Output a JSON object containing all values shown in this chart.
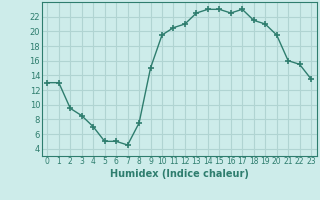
{
  "x": [
    0,
    1,
    2,
    3,
    4,
    5,
    6,
    7,
    8,
    9,
    10,
    11,
    12,
    13,
    14,
    15,
    16,
    17,
    18,
    19,
    20,
    21,
    22,
    23
  ],
  "y": [
    13,
    13,
    9.5,
    8.5,
    7,
    5,
    5,
    4.5,
    7.5,
    15,
    19.5,
    20.5,
    21,
    22.5,
    23,
    23,
    22.5,
    23,
    21.5,
    21,
    19.5,
    16,
    15.5,
    13.5
  ],
  "line_color": "#2e7d6e",
  "marker_color": "#2e7d6e",
  "bg_color": "#cdecea",
  "grid_color": "#b0d4d2",
  "xlabel": "Humidex (Indice chaleur)",
  "ylim": [
    3,
    24
  ],
  "xlim": [
    -0.5,
    23.5
  ],
  "yticks": [
    4,
    6,
    8,
    10,
    12,
    14,
    16,
    18,
    20,
    22
  ],
  "xticks": [
    0,
    1,
    2,
    3,
    4,
    5,
    6,
    7,
    8,
    9,
    10,
    11,
    12,
    13,
    14,
    15,
    16,
    17,
    18,
    19,
    20,
    21,
    22,
    23
  ],
  "tick_color": "#2e7d6e",
  "label_color": "#2e7d6e",
  "axis_color": "#2e7d6e"
}
